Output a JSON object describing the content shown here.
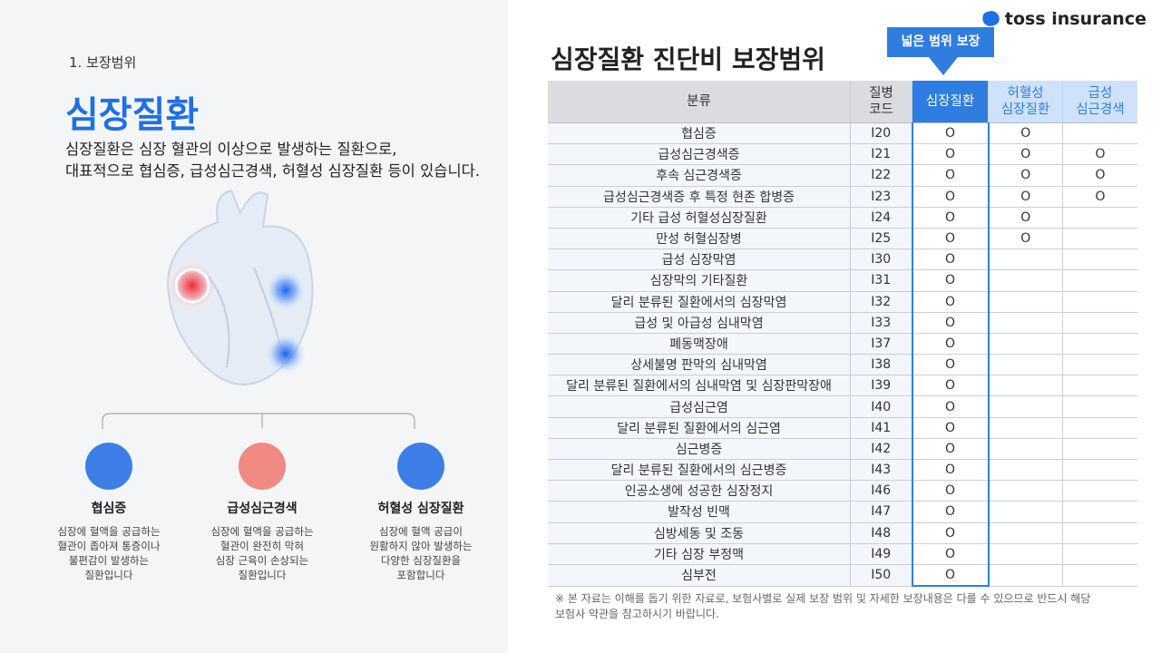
{
  "left": {
    "section_label": "1. 보장범위",
    "title": "심장질환",
    "description": [
      "심장질환은 심장 혈관의 이상으로 발생하는 질환으로,",
      "대표적으로 협심증, 급성심근경색, 허혈성 심장질환 등이 있습니다."
    ],
    "cards": [
      {
        "title": "협심증",
        "lines": [
          "심장에 혈액을 공급하는",
          "혈관이 좁아져 통증이나",
          "불편감이 발생하는",
          "질환입니다"
        ]
      },
      {
        "title": "급성심근경색",
        "lines": [
          "심장에 혈액을 공급하는",
          "혈관이 완전히 막혀",
          "심장 근육이 손상되는",
          "질환입니다"
        ]
      },
      {
        "title": "허혈성 심장질환",
        "lines": [
          "심장에 혈액 공급이",
          "원활하지 않아 발생하는",
          "다양한 심장질환을",
          "포함합니다"
        ]
      }
    ]
  },
  "right": {
    "logo": "toss insurance",
    "title": "심장질환 진단비 보장범위",
    "callout": "넓은 범위 보장",
    "table": {
      "headers": [
        [
          "분류"
        ],
        [
          "질병",
          "코드"
        ],
        [
          "심장질환"
        ],
        [
          "허혈성",
          "심장질환"
        ],
        [
          "급성",
          "심근경색"
        ]
      ],
      "rows": [
        [
          "협심증",
          "I20",
          "O",
          "O",
          null
        ],
        [
          "급성심근경색증",
          "I21",
          "O",
          "O",
          "O"
        ],
        [
          "후속 심근경색증",
          "I22",
          "O",
          "O",
          "O"
        ],
        [
          "급성심근경색증 후 특정 현존 합병증",
          "I23",
          "O",
          "O",
          "O"
        ],
        [
          "기타 급성 허혈성심장질환",
          "I24",
          "O",
          "O",
          null
        ],
        [
          "만성 허혈심장병",
          "I25",
          "O",
          "O",
          null
        ],
        [
          "급성 심장막염",
          "I30",
          "O",
          null,
          null
        ],
        [
          "심장막의 기타질환",
          "I31",
          "O",
          null,
          null
        ],
        [
          "달리 분류된 질환에서의 심장막염",
          "I32",
          "O",
          null,
          null
        ],
        [
          "급성 및 아급성 심내막염",
          "I33",
          "O",
          null,
          null
        ],
        [
          "폐동맥장애",
          "I37",
          "O",
          null,
          null
        ],
        [
          "상세불명 판막의 심내막염",
          "I38",
          "O",
          null,
          null
        ],
        [
          "달리 분류된 질환에서의 심내막염 및 심장판막장애",
          "I39",
          "O",
          null,
          null
        ],
        [
          "급성심근염",
          "I40",
          "O",
          null,
          null
        ],
        [
          "달리 분류된 질환에서의 심근염",
          "I41",
          "O",
          null,
          null
        ],
        [
          "심근병증",
          "I42",
          "O",
          null,
          null
        ],
        [
          "달리 분류된 질환에서의 심근병증",
          "I43",
          "O",
          null,
          null
        ],
        [
          "인공소생에 성공한 심장정지",
          "I46",
          "O",
          null,
          null
        ],
        [
          "발작성 빈맥",
          "I47",
          "O",
          null,
          null
        ],
        [
          "심방세동 및 조동",
          "I48",
          "O",
          null,
          null
        ],
        [
          "기타 심장 부정맥",
          "I49",
          "O",
          null,
          null
        ],
        [
          "심부전",
          "I50",
          "O",
          null,
          null
        ]
      ]
    },
    "footnote": [
      "※ 본 자료는 이해를 돕기 위한 자료로, 보험사별로 실제 보장 범위 및 자세한 보장내용은 다를 수 있으므로 반드시 해당",
      "보험사 약관을 참고하시기 바랍니다."
    ]
  }
}
